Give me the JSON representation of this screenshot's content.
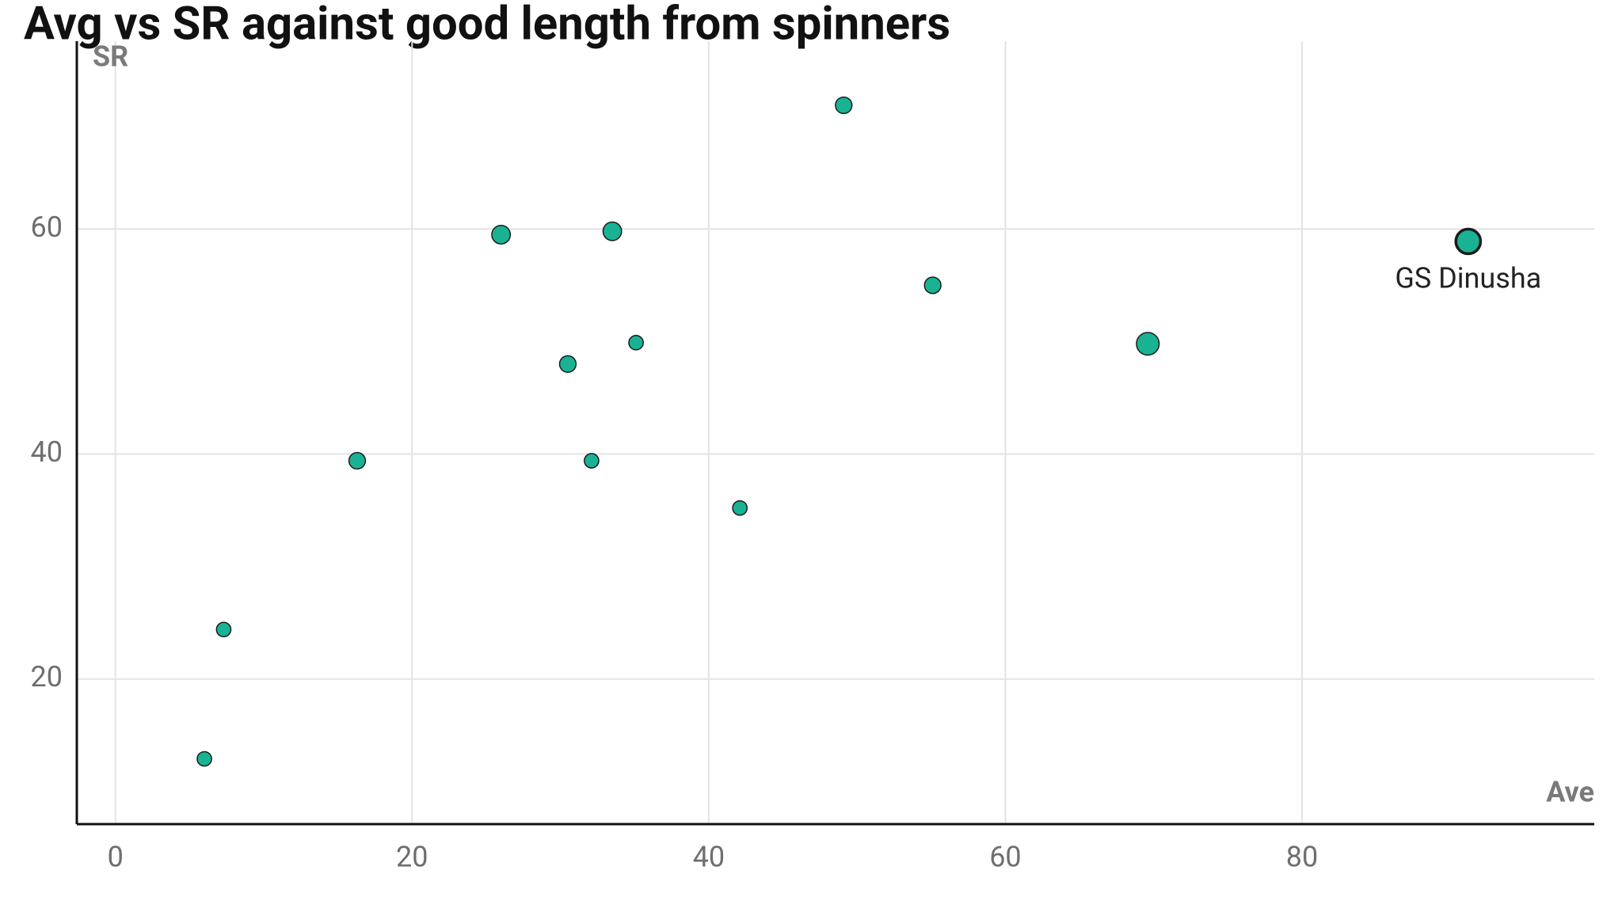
{
  "chart_data": {
    "type": "scatter",
    "title": "Avg vs SR against good length from spinners",
    "x_label": "Ave",
    "y_label": "SR",
    "x": [
      6.0,
      7.3,
      16.3,
      26.0,
      33.5,
      30.5,
      35.1,
      32.1,
      42.1,
      49.1,
      55.1,
      69.6,
      91.2
    ],
    "values": [
      12.9,
      24.4,
      39.4,
      59.5,
      59.8,
      48.0,
      49.9,
      39.4,
      35.2,
      71.0,
      55.0,
      49.8,
      58.9
    ],
    "sizes": [
      7,
      7,
      8,
      9,
      9,
      8,
      7,
      7,
      7,
      8,
      8,
      11,
      12
    ],
    "color": "#19b394",
    "xlim": [
      -2.6,
      99.7
    ],
    "ylim": [
      7.1,
      76.7
    ],
    "xticks": [
      0,
      20,
      40,
      60,
      80
    ],
    "yticks": [
      20,
      40,
      60
    ],
    "grid": true,
    "annotations": [
      {
        "text": "GS Dinusha",
        "x": 91.2,
        "y": 58.9
      }
    ]
  }
}
